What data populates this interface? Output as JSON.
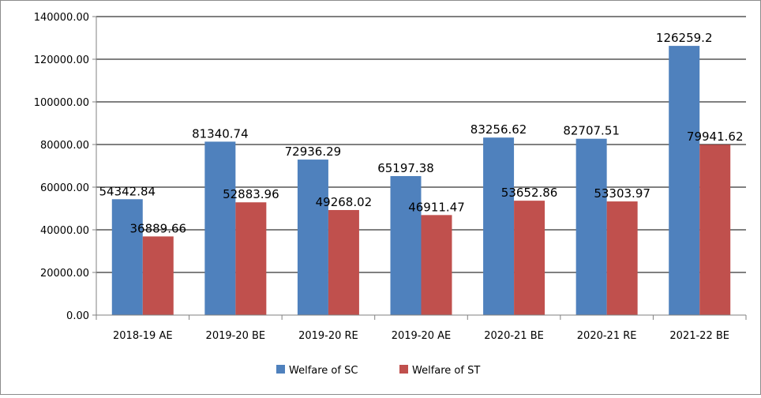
{
  "chart_data": {
    "type": "bar",
    "categories": [
      "2018-19 AE",
      "2019-20 BE",
      "2019-20 RE",
      "2019-20 AE",
      "2020-21 BE",
      "2020-21 RE",
      "2021-22 BE"
    ],
    "series": [
      {
        "name": "Welfare of SC",
        "color": "#4f81bd",
        "values": [
          54342.84,
          81340.74,
          72936.29,
          65197.38,
          83256.62,
          82707.51,
          126259.2
        ],
        "labels": [
          "54342.84",
          "81340.74",
          "72936.29",
          "65197.38",
          "83256.62",
          "82707.51",
          "126259.2"
        ]
      },
      {
        "name": "Welfare of ST",
        "color": "#c0504d",
        "values": [
          36889.66,
          52883.96,
          49268.02,
          46911.47,
          53652.86,
          53303.97,
          79941.62
        ],
        "labels": [
          "36889.66",
          "52883.96",
          "49268.02",
          "46911.47",
          "53652.86",
          "53303.97",
          "79941.62"
        ]
      }
    ],
    "ylim": [
      0,
      140000
    ],
    "yticks": [
      0,
      20000,
      40000,
      60000,
      80000,
      100000,
      120000,
      140000
    ],
    "ytick_labels": [
      "0.00",
      "20000.00",
      "40000.00",
      "60000.00",
      "80000.00",
      "100000.00",
      "120000.00",
      "140000.00"
    ],
    "grid": true,
    "legend_position": "bottom"
  }
}
